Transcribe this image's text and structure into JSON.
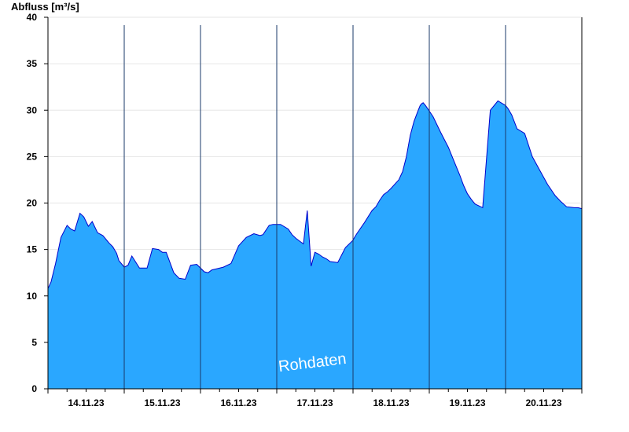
{
  "chart_data": {
    "type": "area",
    "ylabel": "Abfluss [m³/s]",
    "watermark": "Rohdaten",
    "ylim": [
      0,
      40
    ],
    "yticks": [
      0,
      5,
      10,
      15,
      20,
      25,
      30,
      35,
      40
    ],
    "xlim": [
      0,
      7
    ],
    "day_boundaries": [
      1,
      2,
      3,
      4,
      5,
      6
    ],
    "xtick_labels": [
      {
        "x": 0.5,
        "label": "14.11.23"
      },
      {
        "x": 1.5,
        "label": "15.11.23"
      },
      {
        "x": 2.5,
        "label": "16.11.23"
      },
      {
        "x": 3.5,
        "label": "17.11.23"
      },
      {
        "x": 4.5,
        "label": "18.11.23"
      },
      {
        "x": 5.5,
        "label": "19.11.23"
      },
      {
        "x": 6.5,
        "label": "20.11.23"
      }
    ],
    "fill_color": "#2aa7ff",
    "line_color": "#0000cc",
    "series": [
      {
        "x": [
          0,
          0.04,
          0.1,
          0.17,
          0.25,
          0.3,
          0.35,
          0.42,
          0.47,
          0.53,
          0.58,
          0.65,
          0.72,
          0.75,
          0.78,
          0.8,
          0.85,
          0.9,
          0.93,
          0.97,
          1.0,
          1.05,
          1.1,
          1.2,
          1.3,
          1.37,
          1.45,
          1.5,
          1.55,
          1.65,
          1.72,
          1.8,
          1.87,
          1.95,
          2.05,
          2.1,
          2.15,
          2.2,
          2.3,
          2.4,
          2.5,
          2.6,
          2.7,
          2.78,
          2.82,
          2.9,
          2.95,
          3.05,
          3.15,
          3.2,
          3.25,
          3.3,
          3.35,
          3.4,
          3.45,
          3.5,
          3.55,
          3.6,
          3.65,
          3.7,
          3.8,
          3.9,
          4.0,
          4.02,
          4.05,
          4.15,
          4.25,
          4.3,
          4.35,
          4.4,
          4.45,
          4.5,
          4.6,
          4.65,
          4.7,
          4.75,
          4.8,
          4.85,
          4.87,
          4.88,
          4.9,
          4.92,
          4.95,
          5.05,
          5.15,
          5.25,
          5.3,
          5.35,
          5.4,
          5.45,
          5.5,
          5.55,
          5.6,
          5.7,
          5.8,
          5.9,
          6.0,
          6.03,
          6.08,
          6.15,
          6.25,
          6.35,
          6.45,
          6.55,
          6.65,
          6.72,
          6.8,
          6.9,
          6.95,
          7.0
        ],
        "values": [
          10.8,
          11.5,
          13.5,
          16.3,
          17.6,
          17.2,
          17.0,
          18.9,
          18.5,
          17.5,
          18.0,
          16.8,
          16.5,
          16.2,
          15.9,
          15.7,
          15.3,
          14.6,
          13.8,
          13.4,
          13.1,
          13.3,
          14.3,
          13.0,
          13.0,
          15.1,
          15.0,
          14.7,
          14.7,
          12.5,
          11.9,
          11.8,
          13.3,
          13.4,
          12.6,
          12.5,
          12.8,
          12.9,
          13.1,
          13.5,
          15.4,
          16.3,
          16.7,
          16.5,
          16.6,
          17.6,
          17.7,
          17.7,
          17.2,
          16.6,
          16.2,
          15.9,
          15.6,
          19.2,
          13.2,
          14.7,
          14.5,
          14.2,
          14.0,
          13.7,
          13.6,
          15.2,
          16.0,
          16.3,
          16.7,
          17.9,
          19.2,
          19.6,
          20.3,
          20.9,
          21.2,
          21.6,
          22.5,
          23.4,
          25.0,
          27.3,
          28.8,
          29.9,
          30.3,
          30.5,
          30.7,
          30.8,
          30.5,
          29.3,
          27.6,
          26.0,
          25.0,
          24.0,
          23.0,
          21.9,
          21.0,
          20.4,
          19.9,
          19.5,
          30.0,
          31.0,
          30.5,
          30.2,
          29.5,
          28.0,
          27.5,
          25.0,
          23.5,
          22.0,
          20.8,
          20.2,
          19.6,
          19.5,
          19.5,
          19.4
        ]
      }
    ]
  }
}
